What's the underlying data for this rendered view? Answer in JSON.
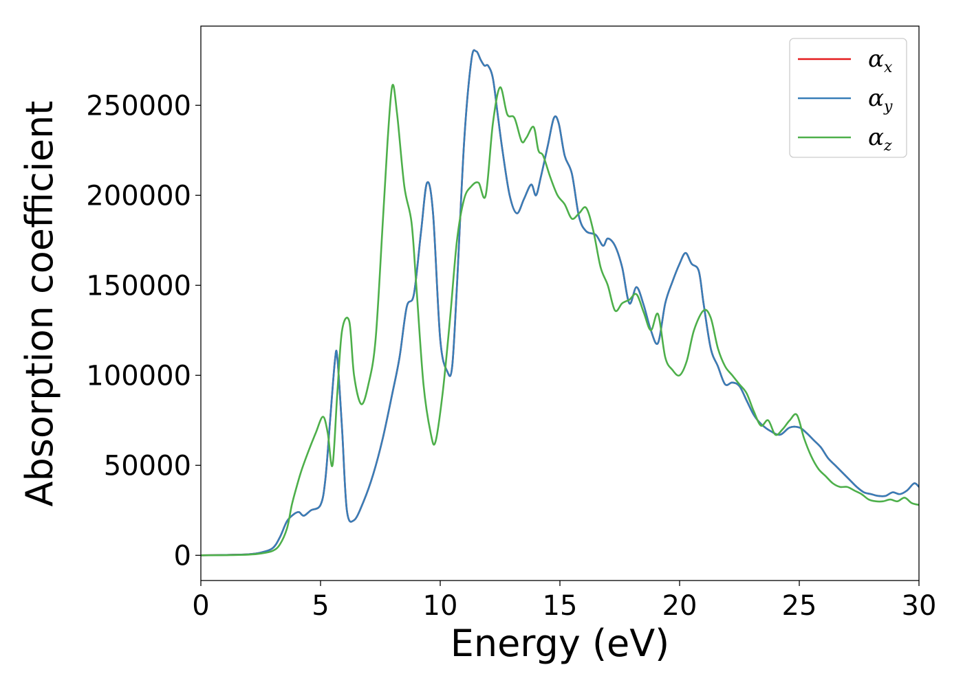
{
  "chart_data": {
    "type": "line",
    "title": "",
    "xlabel": "Energy (eV)",
    "ylabel": "Absorption coefficient",
    "xlim": [
      0,
      30
    ],
    "ylim": [
      -14000,
      294000
    ],
    "xticks": [
      0,
      5,
      10,
      15,
      20,
      25,
      30
    ],
    "xtick_labels": [
      "0",
      "5",
      "10",
      "15",
      "20",
      "25",
      "30"
    ],
    "yticks": [
      0,
      50000,
      100000,
      150000,
      200000,
      250000
    ],
    "ytick_labels": [
      "0",
      "50000",
      "100000",
      "150000",
      "200000",
      "250000"
    ],
    "grid": false,
    "legend_position": "top-right",
    "series": [
      {
        "name": "αx",
        "symbol": "α",
        "subscript": "x",
        "color": "#e41a1c",
        "x": [
          0,
          1,
          2,
          2.5,
          3,
          3.3,
          3.6,
          3.9,
          4.1,
          4.3,
          4.6,
          5.0,
          5.2,
          5.4,
          5.6,
          5.7,
          5.9,
          6.1,
          6.4,
          6.8,
          7.2,
          7.6,
          8.0,
          8.3,
          8.6,
          8.9,
          9.2,
          9.45,
          9.7,
          10.0,
          10.3,
          10.5,
          10.7,
          11.0,
          11.3,
          11.5,
          11.7,
          11.85,
          12.0,
          12.2,
          12.4,
          12.6,
          12.9,
          13.2,
          13.5,
          13.8,
          14.0,
          14.2,
          14.5,
          14.75,
          14.95,
          15.2,
          15.5,
          15.8,
          16.1,
          16.5,
          16.8,
          17.0,
          17.3,
          17.6,
          17.9,
          18.2,
          18.5,
          18.8,
          19.1,
          19.4,
          19.7,
          20.0,
          20.25,
          20.5,
          20.8,
          21.0,
          21.3,
          21.6,
          21.9,
          22.2,
          22.5,
          22.8,
          23.1,
          23.4,
          23.8,
          24.2,
          24.6,
          25.0,
          25.3,
          25.6,
          25.9,
          26.2,
          26.5,
          26.8,
          27.1,
          27.4,
          27.7,
          28.0,
          28.3,
          28.6,
          28.9,
          29.2,
          29.5,
          29.8,
          30.0
        ],
        "y": [
          0,
          200,
          600,
          1500,
          4000,
          10000,
          19000,
          23000,
          24000,
          22000,
          25000,
          28000,
          42000,
          75000,
          108000,
          110000,
          70000,
          25000,
          19500,
          30000,
          45000,
          65000,
          90000,
          110000,
          138000,
          145000,
          180000,
          207000,
          190000,
          120000,
          102000,
          105000,
          150000,
          230000,
          275000,
          280000,
          275000,
          272000,
          272000,
          265000,
          245000,
          225000,
          200000,
          190000,
          198000,
          206000,
          200000,
          210000,
          228000,
          243000,
          240000,
          222000,
          212000,
          188000,
          180000,
          178000,
          172000,
          176000,
          172000,
          160000,
          140000,
          149000,
          139000,
          125000,
          118000,
          140000,
          152000,
          162000,
          168000,
          162000,
          158000,
          140000,
          115000,
          105000,
          95000,
          96000,
          94000,
          86000,
          78000,
          73000,
          69000,
          67000,
          71000,
          71000,
          68000,
          64000,
          60000,
          54000,
          50000,
          46000,
          42000,
          38000,
          35000,
          34000,
          33000,
          33000,
          35000,
          34000,
          36000,
          40000,
          38000
        ]
      },
      {
        "name": "αy",
        "symbol": "α",
        "subscript": "y",
        "color": "#377eb8",
        "x": [
          0,
          1,
          2,
          2.5,
          3,
          3.3,
          3.6,
          3.9,
          4.1,
          4.3,
          4.6,
          5.0,
          5.2,
          5.4,
          5.6,
          5.7,
          5.9,
          6.1,
          6.4,
          6.8,
          7.2,
          7.6,
          8.0,
          8.3,
          8.6,
          8.9,
          9.2,
          9.45,
          9.7,
          10.0,
          10.3,
          10.5,
          10.7,
          11.0,
          11.3,
          11.5,
          11.7,
          11.85,
          12.0,
          12.2,
          12.4,
          12.6,
          12.9,
          13.2,
          13.5,
          13.8,
          14.0,
          14.2,
          14.5,
          14.75,
          14.95,
          15.2,
          15.5,
          15.8,
          16.1,
          16.5,
          16.8,
          17.0,
          17.3,
          17.6,
          17.9,
          18.2,
          18.5,
          18.8,
          19.1,
          19.4,
          19.7,
          20.0,
          20.25,
          20.5,
          20.8,
          21.0,
          21.3,
          21.6,
          21.9,
          22.2,
          22.5,
          22.8,
          23.1,
          23.4,
          23.8,
          24.2,
          24.6,
          25.0,
          25.3,
          25.6,
          25.9,
          26.2,
          26.5,
          26.8,
          27.1,
          27.4,
          27.7,
          28.0,
          28.3,
          28.6,
          28.9,
          29.2,
          29.5,
          29.8,
          30.0
        ],
        "y": [
          0,
          200,
          600,
          1500,
          4000,
          10000,
          19000,
          23000,
          24000,
          22000,
          25000,
          28000,
          42000,
          75000,
          108000,
          110000,
          70000,
          25000,
          19500,
          30000,
          45000,
          65000,
          90000,
          110000,
          138000,
          145000,
          180000,
          207000,
          190000,
          120000,
          102000,
          105000,
          150000,
          230000,
          275000,
          280000,
          275000,
          272000,
          272000,
          265000,
          245000,
          225000,
          200000,
          190000,
          198000,
          206000,
          200000,
          210000,
          228000,
          243000,
          240000,
          222000,
          212000,
          188000,
          180000,
          178000,
          172000,
          176000,
          172000,
          160000,
          140000,
          149000,
          139000,
          125000,
          118000,
          140000,
          152000,
          162000,
          168000,
          162000,
          158000,
          140000,
          115000,
          105000,
          95000,
          96000,
          94000,
          86000,
          78000,
          73000,
          69000,
          67000,
          71000,
          71000,
          68000,
          64000,
          60000,
          54000,
          50000,
          46000,
          42000,
          38000,
          35000,
          34000,
          33000,
          33000,
          35000,
          34000,
          36000,
          40000,
          38000
        ]
      },
      {
        "name": "αz",
        "symbol": "α",
        "subscript": "z",
        "color": "#4daf4a",
        "x": [
          0,
          1,
          2,
          2.5,
          3,
          3.3,
          3.6,
          3.8,
          4.0,
          4.2,
          4.5,
          4.8,
          5.1,
          5.3,
          5.5,
          5.7,
          5.9,
          6.2,
          6.4,
          6.7,
          7.0,
          7.3,
          7.6,
          7.8,
          8.0,
          8.2,
          8.5,
          8.8,
          9.0,
          9.3,
          9.6,
          9.8,
          10.1,
          10.4,
          10.7,
          11.0,
          11.3,
          11.6,
          11.9,
          12.2,
          12.5,
          12.8,
          13.1,
          13.4,
          13.6,
          13.9,
          14.1,
          14.3,
          14.6,
          14.9,
          15.2,
          15.5,
          15.8,
          16.1,
          16.4,
          16.7,
          17.0,
          17.3,
          17.6,
          17.9,
          18.2,
          18.5,
          18.8,
          19.1,
          19.4,
          19.7,
          20.0,
          20.3,
          20.6,
          21.0,
          21.3,
          21.6,
          21.9,
          22.2,
          22.5,
          22.8,
          23.1,
          23.4,
          23.7,
          24.0,
          24.3,
          24.6,
          24.9,
          25.2,
          25.5,
          25.8,
          26.1,
          26.4,
          26.7,
          27.0,
          27.3,
          27.6,
          27.9,
          28.2,
          28.5,
          28.8,
          29.1,
          29.4,
          29.7,
          30.0
        ],
        "y": [
          0,
          100,
          400,
          1000,
          2500,
          6000,
          15000,
          28000,
          38000,
          47000,
          58000,
          68000,
          77000,
          68000,
          50000,
          90000,
          125000,
          130000,
          100000,
          84000,
          95000,
          120000,
          185000,
          230000,
          261000,
          245000,
          205000,
          185000,
          150000,
          95000,
          68000,
          63000,
          90000,
          130000,
          175000,
          198000,
          205000,
          207000,
          200000,
          240000,
          260000,
          245000,
          243000,
          230000,
          232000,
          238000,
          225000,
          222000,
          210000,
          200000,
          195000,
          187000,
          190000,
          193000,
          180000,
          160000,
          150000,
          136000,
          140000,
          142000,
          145000,
          135000,
          125000,
          134000,
          110000,
          103000,
          100000,
          108000,
          125000,
          136000,
          132000,
          115000,
          105000,
          100000,
          95000,
          90000,
          80000,
          72000,
          75000,
          67000,
          70000,
          75000,
          78000,
          65000,
          55000,
          48000,
          44000,
          40000,
          38000,
          38000,
          36000,
          34000,
          31000,
          30000,
          30000,
          31000,
          30000,
          32000,
          29000,
          28000
        ]
      }
    ]
  }
}
